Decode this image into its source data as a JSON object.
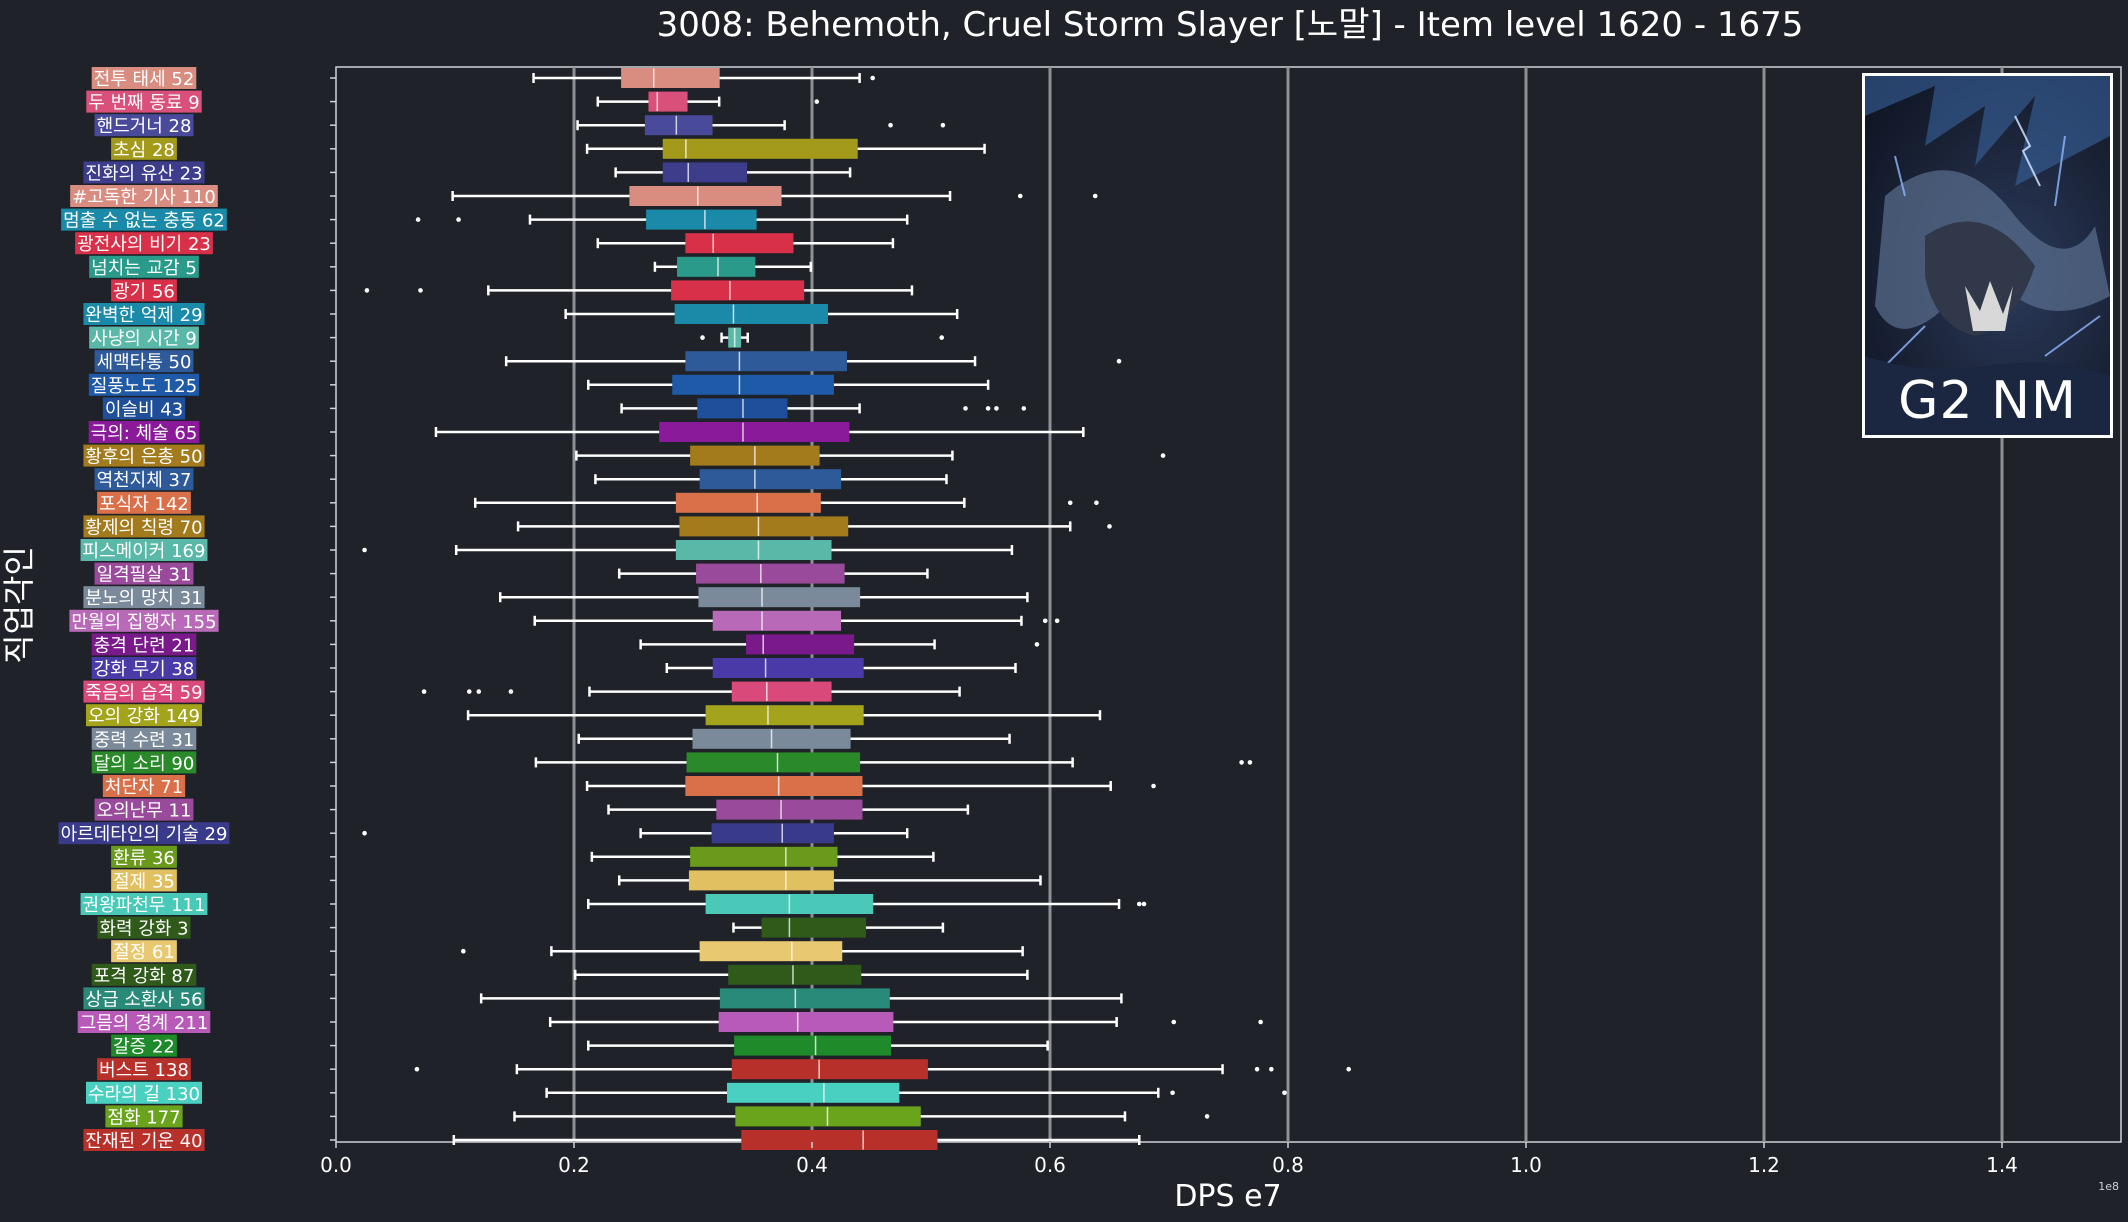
{
  "chart_data": {
    "type": "boxplot",
    "orientation": "horizontal",
    "title": "3008: Behemoth, Cruel Storm Slayer [노말] - Item level 1620 - 1675",
    "xlabel": "DPS e7",
    "ylabel": "직업각인",
    "offset_label": "1e8",
    "xlim": [
      0.0,
      1.5
    ],
    "xticks": [
      0.0,
      0.2,
      0.4,
      0.6,
      0.8,
      1.0,
      1.2,
      1.4
    ],
    "xtick_labels": [
      "0.0",
      "0.2",
      "0.4",
      "0.6",
      "0.8",
      "1.0",
      "1.2",
      "1.4"
    ],
    "grid": "vertical",
    "series": [
      {
        "name": "전투 태세",
        "count": 52,
        "label": "전투 태세 52",
        "color": "#d98c80",
        "whisker_low": 0.166,
        "q1": 0.24,
        "median": 0.267,
        "q3": 0.322,
        "whisker_high": 0.44,
        "outliers": [
          0.451
        ]
      },
      {
        "name": "두 번째 동료",
        "count": 9,
        "label": "두 번째 동료 9",
        "color": "#d9507a",
        "whisker_low": 0.22,
        "q1": 0.263,
        "median": 0.27,
        "q3": 0.295,
        "whisker_high": 0.322,
        "outliers": [
          0.404
        ]
      },
      {
        "name": "핸드거너",
        "count": 28,
        "label": "핸드거너 28",
        "color": "#4a4a9a",
        "whisker_low": 0.203,
        "q1": 0.26,
        "median": 0.286,
        "q3": 0.316,
        "whisker_high": 0.377,
        "outliers": [
          0.466,
          0.51
        ]
      },
      {
        "name": "초심",
        "count": 28,
        "label": "초심 28",
        "color": "#a39a1c",
        "whisker_low": 0.211,
        "q1": 0.275,
        "median": 0.294,
        "q3": 0.438,
        "whisker_high": 0.545,
        "outliers": []
      },
      {
        "name": "진화의 유산",
        "count": 23,
        "label": "진화의 유산 23",
        "color": "#3d3d8c",
        "whisker_low": 0.235,
        "q1": 0.275,
        "median": 0.296,
        "q3": 0.345,
        "whisker_high": 0.432,
        "outliers": []
      },
      {
        "name": "#고독한 기사",
        "count": 110,
        "label": "#고독한 기사 110",
        "color": "#d98c80",
        "whisker_low": 0.098,
        "q1": 0.247,
        "median": 0.304,
        "q3": 0.374,
        "whisker_high": 0.516,
        "outliers": [
          0.575,
          0.638
        ]
      },
      {
        "name": "멈출 수 없는 충동",
        "count": 62,
        "label": "멈출 수 없는 충동 62",
        "color": "#1a8aa8",
        "whisker_low": 0.163,
        "q1": 0.261,
        "median": 0.31,
        "q3": 0.353,
        "whisker_high": 0.48,
        "outliers": [
          0.069,
          0.103
        ]
      },
      {
        "name": "광전사의 비기",
        "count": 23,
        "label": "광전사의 비기 23",
        "color": "#d9304a",
        "whisker_low": 0.22,
        "q1": 0.294,
        "median": 0.317,
        "q3": 0.384,
        "whisker_high": 0.468,
        "outliers": []
      },
      {
        "name": "넘치는 교감",
        "count": 5,
        "label": "넘치는 교감 5",
        "color": "#2a9a8a",
        "whisker_low": 0.268,
        "q1": 0.287,
        "median": 0.321,
        "q3": 0.352,
        "whisker_high": 0.399,
        "outliers": []
      },
      {
        "name": "광기",
        "count": 56,
        "label": "광기 56",
        "color": "#d9304a",
        "whisker_low": 0.128,
        "q1": 0.282,
        "median": 0.331,
        "q3": 0.393,
        "whisker_high": 0.484,
        "outliers": [
          0.026,
          0.071
        ]
      },
      {
        "name": "완벽한 억제",
        "count": 29,
        "label": "완벽한 억제 29",
        "color": "#1a8aa8",
        "whisker_low": 0.193,
        "q1": 0.285,
        "median": 0.334,
        "q3": 0.413,
        "whisker_high": 0.522,
        "outliers": []
      },
      {
        "name": "사냥의 시간",
        "count": 9,
        "label": "사냥의 시간 9",
        "color": "#5ab8a8",
        "whisker_low": 0.324,
        "q1": 0.33,
        "median": 0.335,
        "q3": 0.34,
        "whisker_high": 0.346,
        "outliers": [
          0.308,
          0.509
        ]
      },
      {
        "name": "세맥타통",
        "count": 50,
        "label": "세맥타통 50",
        "color": "#2f5a9a",
        "whisker_low": 0.143,
        "q1": 0.294,
        "median": 0.339,
        "q3": 0.429,
        "whisker_high": 0.537,
        "outliers": [
          0.658
        ]
      },
      {
        "name": "질풍노도",
        "count": 125,
        "label": "질풍노도 125",
        "color": "#1f5aa8",
        "whisker_low": 0.212,
        "q1": 0.283,
        "median": 0.339,
        "q3": 0.418,
        "whisker_high": 0.548,
        "outliers": []
      },
      {
        "name": "이슬비",
        "count": 43,
        "label": "이슬비 43",
        "color": "#1f4f9a",
        "whisker_low": 0.24,
        "q1": 0.304,
        "median": 0.342,
        "q3": 0.379,
        "whisker_high": 0.44,
        "outliers": [
          0.529,
          0.548,
          0.555,
          0.578
        ]
      },
      {
        "name": "극의: 체술",
        "count": 65,
        "label": "극의: 체술 65",
        "color": "#8a1a9a",
        "whisker_low": 0.084,
        "q1": 0.272,
        "median": 0.342,
        "q3": 0.431,
        "whisker_high": 0.628,
        "outliers": []
      },
      {
        "name": "황후의 은총",
        "count": 50,
        "label": "황후의 은총 50",
        "color": "#a37a1c",
        "whisker_low": 0.202,
        "q1": 0.298,
        "median": 0.352,
        "q3": 0.406,
        "whisker_high": 0.518,
        "outliers": [
          0.695
        ]
      },
      {
        "name": "역천지체",
        "count": 37,
        "label": "역천지체 37",
        "color": "#2f5a9a",
        "whisker_low": 0.218,
        "q1": 0.306,
        "median": 0.352,
        "q3": 0.424,
        "whisker_high": 0.513,
        "outliers": []
      },
      {
        "name": "포식자",
        "count": 142,
        "label": "포식자 142",
        "color": "#d9704a",
        "whisker_low": 0.117,
        "q1": 0.286,
        "median": 0.354,
        "q3": 0.407,
        "whisker_high": 0.528,
        "outliers": [
          0.617,
          0.639
        ]
      },
      {
        "name": "황제의 칙령",
        "count": 70,
        "label": "황제의 칙령 70",
        "color": "#a37a1c",
        "whisker_low": 0.153,
        "q1": 0.289,
        "median": 0.355,
        "q3": 0.43,
        "whisker_high": 0.617,
        "outliers": [
          0.65
        ]
      },
      {
        "name": "피스메이커",
        "count": 169,
        "label": "피스메이커 169",
        "color": "#5ab8a8",
        "whisker_low": 0.101,
        "q1": 0.286,
        "median": 0.355,
        "q3": 0.416,
        "whisker_high": 0.568,
        "outliers": [
          0.024
        ]
      },
      {
        "name": "일격필살",
        "count": 31,
        "label": "일격필살 31",
        "color": "#9a4a9a",
        "whisker_low": 0.238,
        "q1": 0.303,
        "median": 0.357,
        "q3": 0.427,
        "whisker_high": 0.497,
        "outliers": []
      },
      {
        "name": "분노의 망치",
        "count": 31,
        "label": "분노의 망치 31",
        "color": "#7a8a9a",
        "whisker_low": 0.138,
        "q1": 0.305,
        "median": 0.358,
        "q3": 0.44,
        "whisker_high": 0.581,
        "outliers": []
      },
      {
        "name": "만월의 집행자",
        "count": 155,
        "label": "만월의 집행자 155",
        "color": "#b86ab8",
        "whisker_low": 0.167,
        "q1": 0.317,
        "median": 0.358,
        "q3": 0.424,
        "whisker_high": 0.576,
        "outliers": [
          0.596,
          0.606
        ]
      },
      {
        "name": "충격 단련",
        "count": 21,
        "label": "충격 단련 21",
        "color": "#7a1a8a",
        "whisker_low": 0.256,
        "q1": 0.345,
        "median": 0.359,
        "q3": 0.435,
        "whisker_high": 0.503,
        "outliers": [
          0.589
        ]
      },
      {
        "name": "강화 무기",
        "count": 38,
        "label": "강화 무기 38",
        "color": "#4a3aa8",
        "whisker_low": 0.278,
        "q1": 0.317,
        "median": 0.361,
        "q3": 0.443,
        "whisker_high": 0.571,
        "outliers": []
      },
      {
        "name": "죽음의 습격",
        "count": 59,
        "label": "죽음의 습격 59",
        "color": "#d94a7a",
        "whisker_low": 0.213,
        "q1": 0.333,
        "median": 0.362,
        "q3": 0.416,
        "whisker_high": 0.524,
        "outliers": [
          0.074,
          0.112,
          0.12,
          0.147
        ]
      },
      {
        "name": "오의 강화",
        "count": 149,
        "label": "오의 강화 149",
        "color": "#a3a31c",
        "whisker_low": 0.111,
        "q1": 0.311,
        "median": 0.363,
        "q3": 0.443,
        "whisker_high": 0.642,
        "outliers": []
      },
      {
        "name": "중력 수련",
        "count": 31,
        "label": "중력 수련 31",
        "color": "#7a8a9a",
        "whisker_low": 0.204,
        "q1": 0.3,
        "median": 0.366,
        "q3": 0.432,
        "whisker_high": 0.566,
        "outliers": []
      },
      {
        "name": "달의 소리",
        "count": 90,
        "label": "달의 소리 90",
        "color": "#2a8a2a",
        "whisker_low": 0.168,
        "q1": 0.295,
        "median": 0.371,
        "q3": 0.44,
        "whisker_high": 0.619,
        "outliers": [
          0.761,
          0.768
        ]
      },
      {
        "name": "처단자",
        "count": 71,
        "label": "처단자 71",
        "color": "#d9704a",
        "whisker_low": 0.211,
        "q1": 0.294,
        "median": 0.372,
        "q3": 0.442,
        "whisker_high": 0.651,
        "outliers": [
          0.687
        ]
      },
      {
        "name": "오의난무",
        "count": 11,
        "label": "오의난무 11",
        "color": "#9a4a9a",
        "whisker_low": 0.229,
        "q1": 0.32,
        "median": 0.374,
        "q3": 0.442,
        "whisker_high": 0.531,
        "outliers": []
      },
      {
        "name": "아르데타인의 기술",
        "count": 29,
        "label": "아르데타인의 기술 29",
        "color": "#3a3a8a",
        "whisker_low": 0.256,
        "q1": 0.316,
        "median": 0.375,
        "q3": 0.418,
        "whisker_high": 0.48,
        "outliers": [
          0.024
        ]
      },
      {
        "name": "환류",
        "count": 36,
        "label": "환류 36",
        "color": "#6a9a1c",
        "whisker_low": 0.215,
        "q1": 0.298,
        "median": 0.378,
        "q3": 0.421,
        "whisker_high": 0.502,
        "outliers": []
      },
      {
        "name": "절제",
        "count": 35,
        "label": "절제 35",
        "color": "#e0c060",
        "whisker_low": 0.238,
        "q1": 0.297,
        "median": 0.378,
        "q3": 0.418,
        "whisker_high": 0.592,
        "outliers": []
      },
      {
        "name": "권왕파천무",
        "count": 111,
        "label": "권왕파천무 111",
        "color": "#4ac8b8",
        "whisker_low": 0.212,
        "q1": 0.311,
        "median": 0.381,
        "q3": 0.451,
        "whisker_high": 0.658,
        "outliers": [
          0.675,
          0.679
        ]
      },
      {
        "name": "화력 강화",
        "count": 3,
        "label": "화력 강화 3",
        "color": "#2f5a1a",
        "whisker_low": 0.334,
        "q1": 0.358,
        "median": 0.381,
        "q3": 0.445,
        "whisker_high": 0.51,
        "outliers": []
      },
      {
        "name": "절정",
        "count": 61,
        "label": "절정 61",
        "color": "#e8c870",
        "whisker_low": 0.181,
        "q1": 0.306,
        "median": 0.383,
        "q3": 0.425,
        "whisker_high": 0.577,
        "outliers": [
          0.107
        ]
      },
      {
        "name": "포격 강화",
        "count": 87,
        "label": "포격 강화 87",
        "color": "#2f5a1a",
        "whisker_low": 0.201,
        "q1": 0.33,
        "median": 0.384,
        "q3": 0.441,
        "whisker_high": 0.581,
        "outliers": []
      },
      {
        "name": "상급 소환사",
        "count": 56,
        "label": "상급 소환사 56",
        "color": "#2a8a7a",
        "whisker_low": 0.122,
        "q1": 0.323,
        "median": 0.386,
        "q3": 0.465,
        "whisker_high": 0.66,
        "outliers": []
      },
      {
        "name": "그믐의 경계",
        "count": 211,
        "label": "그믐의 경계 211",
        "color": "#b85ab8",
        "whisker_low": 0.18,
        "q1": 0.322,
        "median": 0.388,
        "q3": 0.468,
        "whisker_high": 0.656,
        "outliers": [
          0.704,
          0.777
        ]
      },
      {
        "name": "갈증",
        "count": 22,
        "label": "갈증 22",
        "color": "#1f8a2a",
        "whisker_low": 0.212,
        "q1": 0.335,
        "median": 0.403,
        "q3": 0.466,
        "whisker_high": 0.598,
        "outliers": []
      },
      {
        "name": "버스트",
        "count": 138,
        "label": "버스트 138",
        "color": "#b8302a",
        "whisker_low": 0.152,
        "q1": 0.333,
        "median": 0.406,
        "q3": 0.497,
        "whisker_high": 0.745,
        "outliers": [
          0.068,
          0.774,
          0.786,
          0.851
        ]
      },
      {
        "name": "수라의 길",
        "count": 130,
        "label": "수라의 길 130",
        "color": "#4ad0c0",
        "whisker_low": 0.177,
        "q1": 0.329,
        "median": 0.41,
        "q3": 0.473,
        "whisker_high": 0.691,
        "outliers": [
          0.703,
          0.797
        ]
      },
      {
        "name": "점화",
        "count": 177,
        "label": "점화 177",
        "color": "#6aa31c",
        "whisker_low": 0.15,
        "q1": 0.336,
        "median": 0.413,
        "q3": 0.491,
        "whisker_high": 0.663,
        "outliers": [
          0.732
        ]
      },
      {
        "name": "잔재된 기운",
        "count": 40,
        "label": "잔재된 기운 40",
        "color": "#b8302a",
        "whisker_low": 0.099,
        "q1": 0.341,
        "median": 0.443,
        "q3": 0.505,
        "whisker_high": 0.675,
        "outliers": []
      }
    ]
  },
  "inset": {
    "label": "G2 NM",
    "image_name": "behemoth-portrait"
  }
}
